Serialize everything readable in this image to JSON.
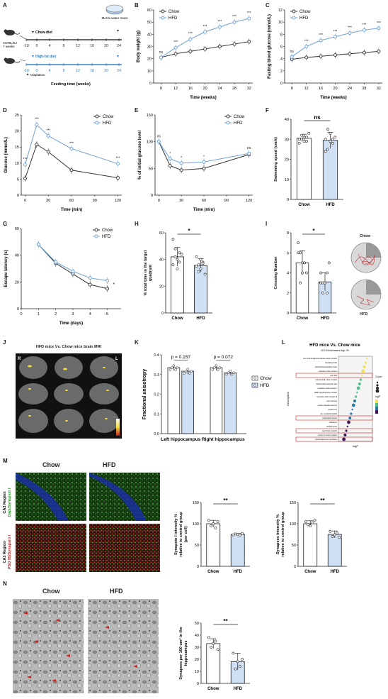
{
  "panels": {
    "A": {
      "label": "A",
      "mouse_info": "C57BL/6J\n7 weeks",
      "chow_label": "Chow diet",
      "hfd_label": "High-fat diet",
      "mwm_label": "Morris water maze",
      "adaptation_label": "Adaptation",
      "xlabel": "Feeding time (weeks)",
      "ticks": [
        "-10",
        "0",
        "4",
        "8",
        "12",
        "16",
        "20",
        "24"
      ],
      "colors": {
        "chow": "#333333",
        "hfd": "#3f7fbf"
      }
    },
    "B": {
      "label": "B",
      "chart_data": {
        "type": "line",
        "x": [
          8,
          12,
          16,
          20,
          24,
          28,
          32
        ],
        "xlabel": "Time (weeks)",
        "ylabel": "Body weight (g)",
        "ylim": [
          0,
          60
        ],
        "yticks": [
          0,
          10,
          20,
          30,
          40,
          50,
          60
        ],
        "series": [
          {
            "name": "Chow",
            "values": [
              21,
              24,
              26,
              28,
              30,
              32,
              34
            ]
          },
          {
            "name": "HFD",
            "values": [
              21,
              29,
              36,
              42,
              46,
              50,
              53
            ]
          }
        ],
        "sig": [
          "ns",
          "***",
          "***",
          "***",
          "***",
          "***",
          "***"
        ],
        "legend": "top-left"
      }
    },
    "C": {
      "label": "C",
      "chart_data": {
        "type": "line",
        "x": [
          8,
          12,
          16,
          20,
          24,
          28,
          32
        ],
        "xlabel": "Time (weeks)",
        "ylabel": "Fasting blood glucose (mmol/L)",
        "ylim": [
          0,
          12
        ],
        "yticks": [
          0,
          2,
          4,
          6,
          8,
          10,
          12
        ],
        "series": [
          {
            "name": "Chow",
            "values": [
              3.9,
              4.2,
              4.4,
              4.6,
              4.8,
              5.0,
              5.2
            ]
          },
          {
            "name": "HFD",
            "values": [
              4.3,
              6.0,
              7.0,
              7.6,
              8.2,
              8.7,
              9.0
            ]
          }
        ],
        "sig": [
          "ns",
          "***",
          "***",
          "***",
          "***",
          "***",
          "***"
        ],
        "legend": "top-left"
      }
    },
    "D": {
      "label": "D",
      "chart_data": {
        "type": "line",
        "x": [
          0,
          15,
          30,
          60,
          120
        ],
        "xlabel": "Time (min)",
        "ylabel": "Glucose (mmol/L)",
        "ylim": [
          0,
          25
        ],
        "yticks": [
          0,
          5,
          10,
          15,
          20,
          25
        ],
        "xticks": [
          0,
          30,
          60,
          90,
          120
        ],
        "series": [
          {
            "name": "Chow",
            "values": [
              5.2,
              15.8,
              13.5,
              7.8,
              5.4
            ]
          },
          {
            "name": "HFD",
            "values": [
              9.5,
              22.0,
              18.5,
              14.5,
              9.8
            ]
          }
        ],
        "sig": [
          "***",
          "***",
          "***",
          "***",
          "***"
        ],
        "legend": "top-right"
      }
    },
    "E": {
      "label": "E",
      "chart_data": {
        "type": "line",
        "x": [
          0,
          15,
          30,
          60,
          120
        ],
        "xlabel": "Time (min)",
        "ylabel": "% of initial glucose level",
        "ylim": [
          0,
          150
        ],
        "yticks": [
          0,
          50,
          100,
          150
        ],
        "xticks": [
          0,
          30,
          60,
          90,
          120
        ],
        "series": [
          {
            "name": "Chow",
            "values": [
              100,
              55,
              47,
              50,
              76
            ]
          },
          {
            "name": "HFD",
            "values": [
              100,
              68,
              60,
              62,
              78
            ]
          }
        ],
        "sig": [
          "ns",
          "*",
          "*",
          "*",
          "ns"
        ],
        "legend": "top-right"
      }
    },
    "F": {
      "label": "F",
      "chart_data": {
        "type": "bar",
        "categories": [
          "Chow",
          "HFD"
        ],
        "values": [
          30.5,
          29.5
        ],
        "errors": [
          2.0,
          4.0
        ],
        "points": [
          [
            30,
            32,
            29,
            31,
            33,
            28,
            30,
            31,
            29
          ],
          [
            30,
            25,
            33,
            28,
            31,
            24,
            35,
            29,
            30
          ]
        ],
        "ylabel": "Swimming speed (cm/s)",
        "ylim": [
          0,
          40
        ],
        "yticks": [
          0,
          10,
          20,
          30,
          40
        ],
        "sig": "ns"
      }
    },
    "G": {
      "label": "G",
      "chart_data": {
        "type": "line",
        "x": [
          1,
          2,
          3,
          4,
          5
        ],
        "xlabel": "Time (days)",
        "ylabel": "Escape latency (s)",
        "ylim": [
          0,
          60
        ],
        "yticks": [
          0,
          20,
          40,
          60
        ],
        "xticks": [
          0,
          1,
          2,
          3,
          4,
          5
        ],
        "series": [
          {
            "name": "Chow",
            "values": [
              48,
              34,
              26,
              18,
              15
            ]
          },
          {
            "name": "HFD",
            "values": [
              48,
              35,
              28,
              23,
              21
            ]
          }
        ],
        "sig": "*",
        "legend": "top-right"
      }
    },
    "H": {
      "label": "H",
      "chart_data": {
        "type": "bar",
        "categories": [
          "Chow",
          "HFD"
        ],
        "values": [
          42,
          35.5
        ],
        "errors": [
          7,
          5
        ],
        "points": [
          [
            55,
            48,
            40,
            38,
            44,
            36,
            42,
            33,
            45
          ],
          [
            42,
            36,
            33,
            38,
            29,
            35,
            31,
            40,
            37
          ]
        ],
        "ylabel": "% total time in the target quadrant",
        "ylim": [
          0,
          60
        ],
        "yticks": [
          0,
          20,
          40,
          60
        ],
        "sig": "*"
      }
    },
    "I": {
      "label": "I",
      "chart_data": {
        "type": "bar",
        "categories": [
          "Chow",
          "HFD"
        ],
        "values": [
          5.0,
          3.1
        ],
        "errors": [
          1.2,
          0.9
        ],
        "points": [
          [
            7,
            6,
            5,
            5,
            4,
            6,
            3,
            4,
            5
          ],
          [
            4,
            3,
            3,
            2,
            5,
            3,
            2,
            3,
            4
          ]
        ],
        "ylabel": "Crossing Number",
        "ylim": [
          0,
          8
        ],
        "yticks": [
          0,
          2,
          4,
          6,
          8
        ],
        "sig": "*"
      },
      "chow_label": "Chow",
      "hfd_label": "HFD"
    },
    "J": {
      "label": "J",
      "title": "HFD mice Vs. Chow mice brain MRI",
      "r_label": "R",
      "l_label": "L"
    },
    "K": {
      "label": "K",
      "chart_data": {
        "type": "bar",
        "categories": [
          "Left hippocampus",
          "Right hippocampus"
        ],
        "series": [
          {
            "name": "Chow",
            "values": [
              0.335,
              0.335
            ],
            "errors": [
              0.015,
              0.015
            ]
          },
          {
            "name": "HFD",
            "values": [
              0.317,
              0.309
            ],
            "errors": [
              0.015,
              0.012
            ]
          }
        ],
        "ylabel": "Fractional anisotropy",
        "ylim": [
          0.0,
          0.4
        ],
        "yticks": [
          "0.0",
          "0.1",
          "0.2",
          "0.3",
          "0.4"
        ],
        "pvalues": [
          "p = 0.157",
          "p = 0.072"
        ],
        "legend": "right"
      }
    },
    "L": {
      "label": "L",
      "title": "HFD mice Vs. Chow mice",
      "subtitle": "GO Enrichment top 20",
      "ylabel": "Description",
      "xlabel": "logP",
      "legend_count": "Count",
      "legend_logp": "logP",
      "terms": [
        "inner mitochondrial membrane protein complex",
        "respiratory chain",
        "mitochondrial respiratory chain",
        "respiratory chain complex",
        "axon part",
        "mitochondrial protein complex",
        "mitochondrial membrane part",
        "respiratory chain complex I",
        "NADH dehydrogenase complex",
        "respiratory chain complex III",
        "axon terminus",
        "neuron projection terminus",
        "growth cone",
        "site of polarized growth",
        "postsynaptic density",
        "distal axon",
        "dendritic spine",
        "asymmetric synapse",
        "neuron to neuron synapse",
        "mitochondrial inner membrane"
      ]
    },
    "M": {
      "label": "M",
      "chow_label": "Chow",
      "hfd_label": "HFD",
      "row1_label": "CA3 Region",
      "row1_stain": "Dapi/Synapsin I",
      "row2_label": "CA1 Region",
      "row2_stain": "PSD 95/Synapsin I",
      "chart1": {
        "type": "bar",
        "categories": [
          "Chow",
          "HFD"
        ],
        "values": [
          100,
          75
        ],
        "errors": [
          8,
          2
        ],
        "points": [
          [
            108,
            95,
            100,
            90,
            105
          ],
          [
            74,
            76,
            75,
            73,
            77
          ]
        ],
        "ylabel": "Synapsin I intensity % relative to control group (per cell)",
        "ylim": [
          0,
          150
        ],
        "yticks": [
          0,
          50,
          100,
          150
        ],
        "sig": "**"
      },
      "chart2": {
        "type": "bar",
        "categories": [
          "Chow",
          "HFD"
        ],
        "values": [
          100,
          75
        ],
        "errors": [
          7,
          8
        ],
        "points": [
          [
            105,
            98,
            95,
            102,
            108
          ],
          [
            82,
            70,
            74,
            78,
            68
          ]
        ],
        "ylabel": "Synapses intensity % relative to control group",
        "ylim": [
          0,
          150
        ],
        "yticks": [
          0,
          50,
          100,
          150
        ],
        "sig": "**"
      }
    },
    "N": {
      "label": "N",
      "chow_label": "Chow",
      "hfd_label": "HFD",
      "chart": {
        "type": "bar",
        "categories": [
          "Chow",
          "HFD"
        ],
        "values": [
          33,
          18
        ],
        "errors": [
          4,
          7
        ],
        "points": [
          [
            38,
            30,
            33,
            35,
            28
          ],
          [
            25,
            12,
            18,
            14,
            20
          ]
        ],
        "ylabel": "Synapses per 100 um² in the hippocampus",
        "ylim": [
          0,
          50
        ],
        "yticks": [
          0,
          10,
          20,
          30,
          40,
          50
        ],
        "sig": "**"
      }
    }
  },
  "colors": {
    "chow": "#333333",
    "hfd": "#6fa0d8",
    "hfd_fill": "#cfe0f5",
    "sig_red": "#cc2222"
  }
}
